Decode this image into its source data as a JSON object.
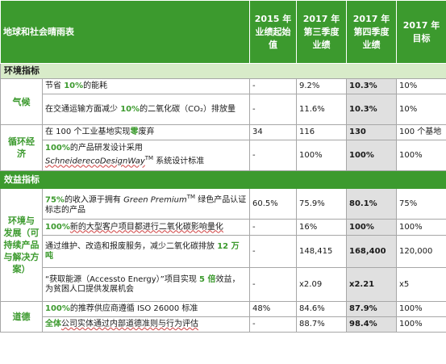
{
  "header": {
    "title": "地球和社会晴雨表",
    "col_2015": [
      "2015 年",
      "业绩起始",
      "值"
    ],
    "col_q3": [
      "2017 年",
      "第三季度",
      "业绩"
    ],
    "col_q4": [
      "2017 年",
      "第四季度",
      "业绩"
    ],
    "col_target": [
      "2017 年",
      "目标"
    ]
  },
  "sections": {
    "env": "环境指标",
    "benefit": "效益指标"
  },
  "categories": {
    "climate": "气候",
    "circular": [
      "循环经",
      "济"
    ],
    "env_dev": [
      "环境与",
      "发展（可",
      "持续产品",
      "与解决方",
      "案）"
    ],
    "ethics": "道德"
  },
  "rows": [
    {
      "pre": "节省 ",
      "hl": "10%",
      "post": "的能耗",
      "b2015": "-",
      "q3": "9.2%",
      "q4": "10.3%",
      "target": "10%"
    },
    {
      "pre": "在交通运输方面减少 ",
      "hl": "10%",
      "post": "的二氧化碳（CO₂）排放量",
      "b2015": "-",
      "q3": "11.6%",
      "q4": "10.3%",
      "target": "10%"
    },
    {
      "pre": "在 100 个工业基地实现",
      "hl": "零",
      "post": "废弃",
      "b2015": "34",
      "q3": "116",
      "q4": "130",
      "target": "100 个基地"
    },
    {
      "pre": "",
      "hl": "100%",
      "post": "的产品研发设计采用",
      "italic": "SchneiderecoDesignWay",
      "tm": "TM",
      "post2": " 系统设计标准",
      "b2015": "-",
      "q3": "100%",
      "q4": "100%",
      "target": "100%"
    },
    {
      "pre": "",
      "hl": "75%",
      "post": "的收入源于拥有 ",
      "italic": "Green Premium",
      "tm": "TM",
      "post2": " 绿色产品认证标志的产品",
      "b2015": "60.5%",
      "q3": "75.9%",
      "q4": "80.1%",
      "target": "75%"
    },
    {
      "pre": "",
      "hl": "100%",
      "post": "新的大型客户项目都进行二氧化碳影响量化",
      "b2015": "-",
      "q3": "16%",
      "q4": "100%",
      "target": "100%"
    },
    {
      "pre": "通过维护、改造和报废服务，减少二氧化碳排放 ",
      "hl": "12 万吨",
      "post": "",
      "b2015": "-",
      "q3": "148,415",
      "q4": "168,400",
      "target": "120,000"
    },
    {
      "pre": "“获取能源（Accessto Energy）”项目实现 ",
      "hl": "5 倍",
      "post": "效益，为贫困人口提供发展机会",
      "b2015": "-",
      "q3": "x2.09",
      "q4": "x2.21",
      "target": "x5"
    },
    {
      "pre": "",
      "hl": "100%",
      "post": "的推荐供应商遵循 ISO 26000 标准",
      "b2015": "48%",
      "q3": "84.6%",
      "q4": "87.9%",
      "target": "100%"
    },
    {
      "pre": "",
      "hl": "全体",
      "post": "公司实体通过内部道德准则与行为评估",
      "b2015": "-",
      "q3": "88.7%",
      "q4": "98.4%",
      "target": "100%"
    }
  ]
}
